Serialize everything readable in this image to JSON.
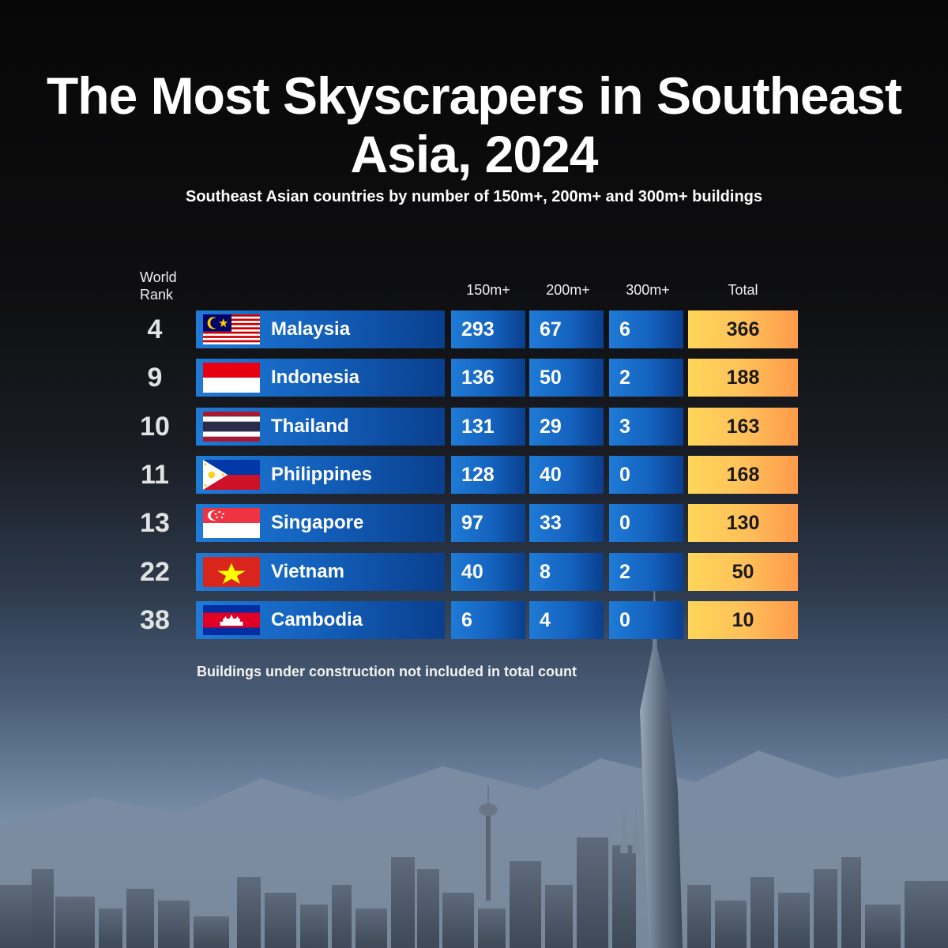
{
  "title": "The Most Skyscrapers in Southeast Asia, 2024",
  "subtitle": "Southeast Asian countries by number of 150m+, 200m+ and 300m+ buildings",
  "note": "Buildings under construction not included in total count",
  "colors": {
    "bar_blue": "#1462be",
    "total_orange": "#ffc15a",
    "background": "#0b0b0b"
  },
  "chart_data": {
    "type": "table",
    "columns": {
      "rank_line1": "World",
      "rank_line2": "Rank",
      "h150": "150m+",
      "h200": "200m+",
      "h300": "300m+",
      "total": "Total"
    },
    "rows": [
      {
        "rank": "4",
        "country": "Malaysia",
        "flag": "malaysia-flag-icon",
        "h150": "293",
        "h200": "67",
        "h300": "6",
        "total": "366"
      },
      {
        "rank": "9",
        "country": "Indonesia",
        "flag": "indonesia-flag-icon",
        "h150": "136",
        "h200": "50",
        "h300": "2",
        "total": "188"
      },
      {
        "rank": "10",
        "country": "Thailand",
        "flag": "thailand-flag-icon",
        "h150": "131",
        "h200": "29",
        "h300": "3",
        "total": "163"
      },
      {
        "rank": "11",
        "country": "Philippines",
        "flag": "philippines-flag-icon",
        "h150": "128",
        "h200": "40",
        "h300": "0",
        "total": "168"
      },
      {
        "rank": "13",
        "country": "Singapore",
        "flag": "singapore-flag-icon",
        "h150": "97",
        "h200": "33",
        "h300": "0",
        "total": "130"
      },
      {
        "rank": "22",
        "country": "Vietnam",
        "flag": "vietnam-flag-icon",
        "h150": "40",
        "h200": "8",
        "h300": "2",
        "total": "50"
      },
      {
        "rank": "38",
        "country": "Cambodia",
        "flag": "cambodia-flag-icon",
        "h150": "6",
        "h200": "4",
        "h300": "0",
        "total": "10"
      }
    ]
  }
}
